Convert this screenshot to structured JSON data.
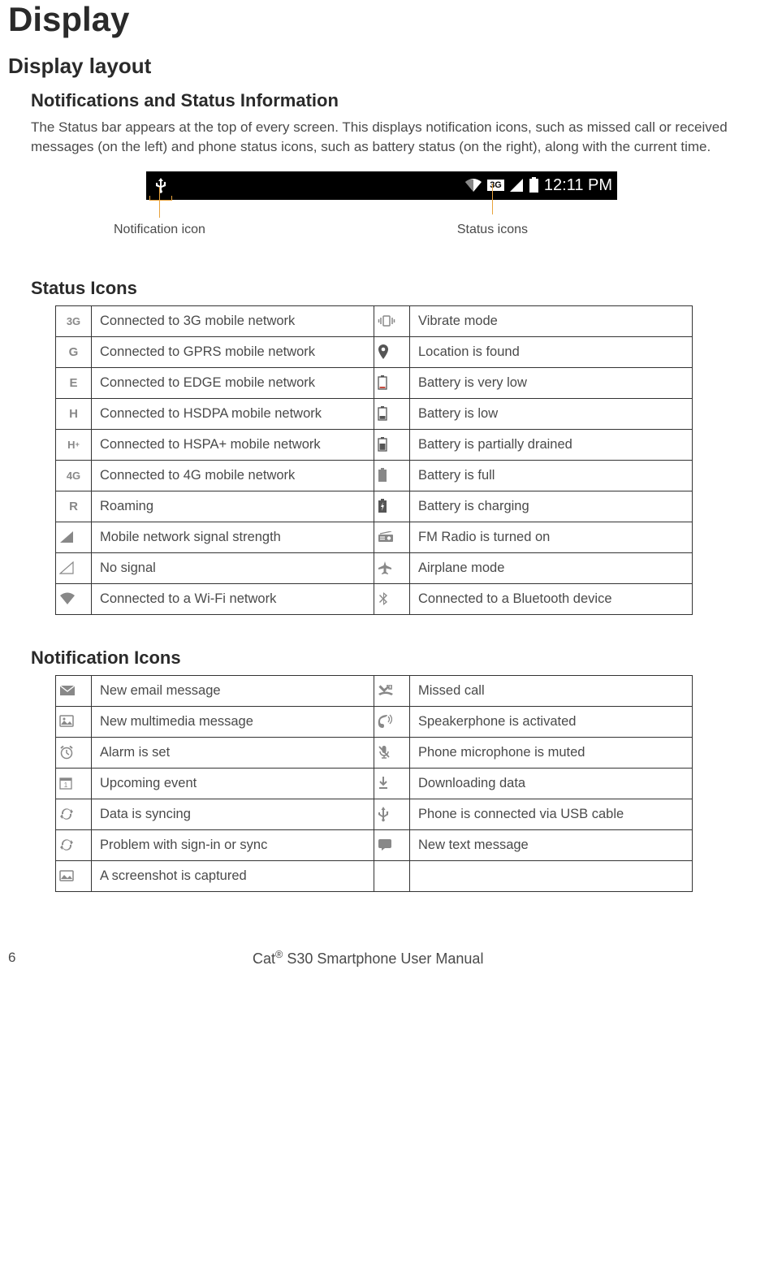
{
  "page": {
    "h1": "Display",
    "h2": "Display layout",
    "notifications_heading": "Notifications and Status Information",
    "notifications_body": "The Status bar appears at the top of every screen. This displays notification icons, such as missed call or received messages (on the left) and phone status icons, such as battery status (on the right), along with the current time.",
    "statusbar": {
      "time": "12:11 PM",
      "left_callout": "Notification icon",
      "right_callout": "Status icons",
      "three_g_label": "3G"
    },
    "status_icons_heading": "Status Icons",
    "notification_icons_heading": "Notification Icons"
  },
  "status_icons": {
    "rows": [
      {
        "l_icon": "3G",
        "l_desc": "Connected to 3G mobile network",
        "r_icon": "vibrate",
        "r_desc": "Vibrate mode"
      },
      {
        "l_icon": "G",
        "l_desc": "Connected to GPRS mobile network",
        "r_icon": "location",
        "r_desc": "Location is found"
      },
      {
        "l_icon": "E",
        "l_desc": "Connected to EDGE mobile network",
        "r_icon": "battery-verylow",
        "r_desc": "Battery is very low"
      },
      {
        "l_icon": "H",
        "l_desc": "Connected to HSDPA mobile network",
        "r_icon": "battery-low",
        "r_desc": "Battery is low"
      },
      {
        "l_icon": "H+",
        "l_desc": "Connected to HSPA+ mobile network",
        "r_icon": "battery-partial",
        "r_desc": "Battery is partially drained"
      },
      {
        "l_icon": "4G",
        "l_desc": "Connected to 4G mobile network",
        "r_icon": "battery-full",
        "r_desc": "Battery is full"
      },
      {
        "l_icon": "R",
        "l_desc": "Roaming",
        "r_icon": "battery-charge",
        "r_desc": "Battery is charging"
      },
      {
        "l_icon": "signal",
        "l_desc": "Mobile network signal strength",
        "r_icon": "radio",
        "r_desc": "FM Radio is turned on"
      },
      {
        "l_icon": "nosignal",
        "l_desc": "No signal",
        "r_icon": "airplane",
        "r_desc": "Airplane mode"
      },
      {
        "l_icon": "wifi",
        "l_desc": "Connected to a Wi-Fi network",
        "r_icon": "bluetooth",
        "r_desc": "Connected to a Bluetooth device"
      }
    ]
  },
  "notification_icons": {
    "rows": [
      {
        "l_icon": "email",
        "l_desc": "New email message",
        "r_icon": "missed-call",
        "r_desc": "Missed call"
      },
      {
        "l_icon": "mms",
        "l_desc": "New multimedia message",
        "r_icon": "speaker",
        "r_desc": "Speakerphone is activated"
      },
      {
        "l_icon": "alarm",
        "l_desc": "Alarm is set",
        "r_icon": "mic-mute",
        "r_desc": "Phone microphone is muted"
      },
      {
        "l_icon": "calendar",
        "l_desc": "Upcoming event",
        "r_icon": "download",
        "r_desc": "Downloading data"
      },
      {
        "l_icon": "sync",
        "l_desc": "Data is syncing",
        "r_icon": "usb",
        "r_desc": "Phone is connected via USB cable"
      },
      {
        "l_icon": "sync-problem",
        "l_desc": "Problem with sign-in or sync",
        "r_icon": "sms",
        "r_desc": "New text message"
      },
      {
        "l_icon": "screenshot",
        "l_desc": "A screenshot is captured",
        "r_icon": "",
        "r_desc": ""
      }
    ]
  },
  "footer": {
    "page_number": "6",
    "manual_title_pre": "Cat",
    "manual_title_reg": "®",
    "manual_title_post": " S30 Smartphone User Manual"
  },
  "colors": {
    "text": "#4a4a4a",
    "heading": "#2a2a2a",
    "border": "#333333",
    "icon": "#888888",
    "callout_line": "#e8a33d",
    "statusbar_bg": "#000000",
    "statusbar_fg": "#ffffff"
  }
}
